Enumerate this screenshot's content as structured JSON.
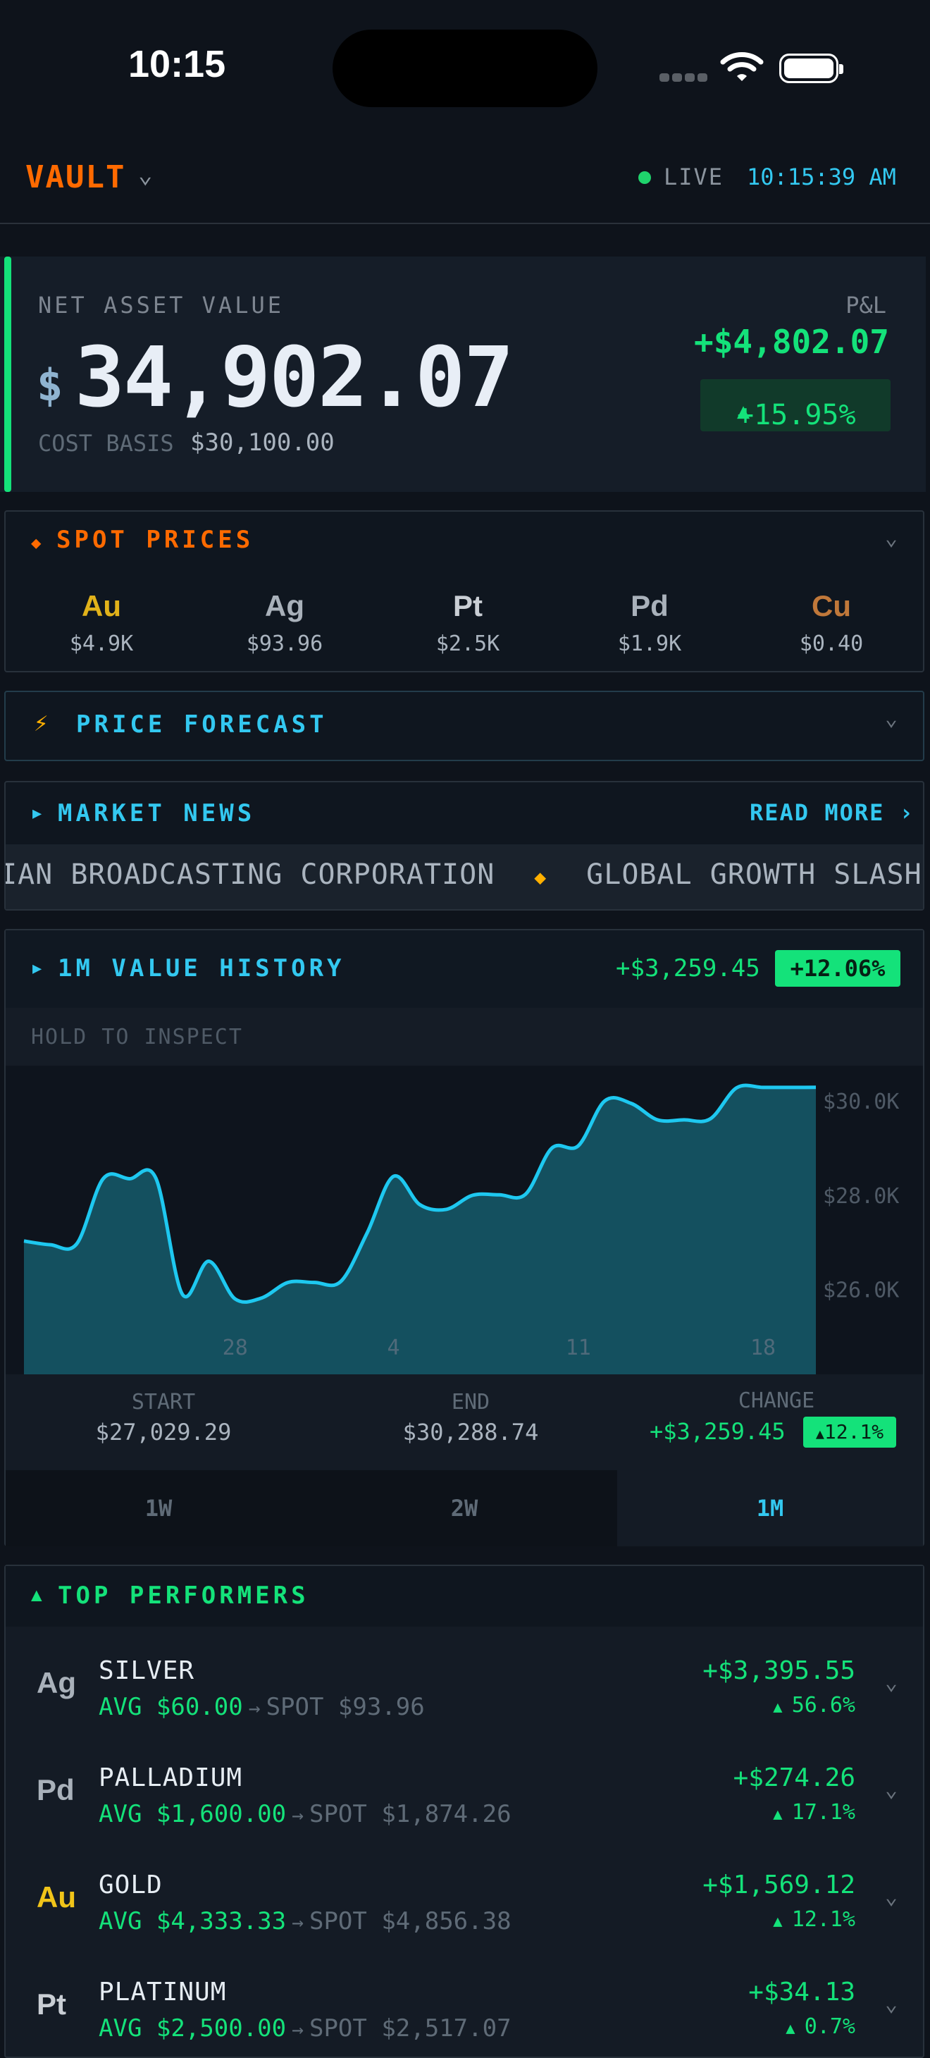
{
  "status_bar": {
    "time": "10:15"
  },
  "header": {
    "brand": "VAULT",
    "live_label": "LIVE",
    "clock": "10:15:39 AM"
  },
  "nav": {
    "label": "NET ASSET VALUE",
    "currency": "$",
    "value": "34,902.07",
    "cost_basis_label": "COST BASIS",
    "cost_basis_value": "$30,100.00",
    "pl_label": "P&L",
    "pl_value": "+$4,802.07",
    "pl_percent": "+15.95%"
  },
  "spot_prices": {
    "title": "SPOT PRICES",
    "items": [
      {
        "symbol": "Au",
        "price": "$4.9K",
        "color": "#e1b21a"
      },
      {
        "symbol": "Ag",
        "price": "$93.96",
        "color": "#a9b1ba"
      },
      {
        "symbol": "Pt",
        "price": "$2.5K",
        "color": "#c9ced4"
      },
      {
        "symbol": "Pd",
        "price": "$1.9K",
        "color": "#a9b1ba"
      },
      {
        "symbol": "Cu",
        "price": "$0.40",
        "color": "#c0783a"
      }
    ]
  },
  "forecast": {
    "title": "PRICE FORECAST"
  },
  "news": {
    "title": "MARKET NEWS",
    "read_more": "READ MORE",
    "ticker": [
      "IAN BROADCASTING CORPORATION",
      "GLOBAL GROWTH SLASHED"
    ]
  },
  "history": {
    "title": "1M VALUE HISTORY",
    "change": "+$3,259.45",
    "change_pct": "+12.06%",
    "hint": "HOLD TO INSPECT",
    "start_label": "START",
    "start_value": "$27,029.29",
    "end_label": "END",
    "end_value": "$30,288.74",
    "change_label": "CHANGE",
    "change_value": "+$3,259.45",
    "change_badge": "12.1%",
    "ranges": [
      "1W",
      "2W",
      "1M"
    ],
    "active_range": "1M"
  },
  "chart_data": {
    "type": "area",
    "x": [
      0,
      1,
      2,
      3,
      4,
      5,
      6,
      7,
      8,
      9,
      10,
      11,
      12,
      13,
      14,
      15,
      16,
      17,
      18,
      19,
      20,
      21,
      22,
      23,
      24,
      25,
      26,
      27,
      28,
      29,
      30
    ],
    "x_tick_labels": [
      {
        "at": 8,
        "label": "28"
      },
      {
        "at": 14,
        "label": "4"
      },
      {
        "at": 21,
        "label": "11"
      },
      {
        "at": 28,
        "label": "18"
      }
    ],
    "values": [
      27029,
      26950,
      26970,
      28350,
      28350,
      28360,
      25900,
      26600,
      25800,
      25820,
      26150,
      26150,
      26170,
      27200,
      28400,
      27800,
      27700,
      28000,
      28010,
      28020,
      29000,
      29050,
      30000,
      29950,
      29600,
      29600,
      29620,
      30280,
      30288,
      30288,
      30289
    ],
    "ylim": [
      24200,
      30600
    ],
    "y_ticks": [
      {
        "value": 30000,
        "label": "$30.0K"
      },
      {
        "value": 28000,
        "label": "$28.0K"
      },
      {
        "value": 26000,
        "label": "$26.0K"
      }
    ],
    "line_color": "#1ec8f0",
    "fill_color": "#14505f"
  },
  "performers": {
    "title": "TOP PERFORMERS",
    "rows": [
      {
        "symbol": "Ag",
        "name": "SILVER",
        "avg": "AVG $60.00",
        "spot": "SPOT $93.96",
        "gain": "+$3,395.55",
        "pct": "56.6%",
        "color": "#a9b1ba"
      },
      {
        "symbol": "Pd",
        "name": "PALLADIUM",
        "avg": "AVG $1,600.00",
        "spot": "SPOT $1,874.26",
        "gain": "+$274.26",
        "pct": "17.1%",
        "color": "#a9b1ba"
      },
      {
        "symbol": "Au",
        "name": "GOLD",
        "avg": "AVG $4,333.33",
        "spot": "SPOT $4,856.38",
        "gain": "+$1,569.12",
        "pct": "12.1%",
        "color": "#f0c419"
      },
      {
        "symbol": "Pt",
        "name": "PLATINUM",
        "avg": "AVG $2,500.00",
        "spot": "SPOT $2,517.07",
        "gain": "+$34.13",
        "pct": "0.7%",
        "color": "#c9ced4"
      }
    ]
  }
}
